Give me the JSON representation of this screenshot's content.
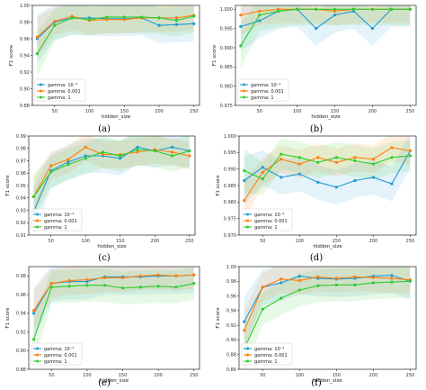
{
  "figure": {
    "colors": {
      "gamma_1e-4": "#1f9bd4",
      "gamma_0.001": "#ff7f0e",
      "gamma_1": "#2ecc2e"
    },
    "legend": [
      "gamma: 10⁻⁴",
      "gamma: 0.001",
      "gamma: 1"
    ]
  },
  "chart_data": [
    {
      "panel": "(a)",
      "type": "line",
      "xlabel": "hidden_size",
      "ylabel": "F1 score",
      "xlim": [
        18,
        258
      ],
      "ylim": [
        0.88,
        1.0
      ],
      "xticks": [
        50,
        100,
        150,
        200,
        250
      ],
      "yticks": [
        0.88,
        0.9,
        0.92,
        0.94,
        0.96,
        0.98,
        1.0
      ],
      "ytick_labels": [
        "0.88",
        "0.90",
        "0.92",
        "0.94",
        "0.96",
        "0.98",
        "1.00"
      ],
      "legend_position": "lower-right",
      "x": [
        25,
        50,
        75,
        100,
        125,
        150,
        175,
        200,
        225,
        250
      ],
      "series": [
        {
          "name": "gamma: 10⁻⁴",
          "values": [
            0.96,
            0.98,
            0.985,
            0.985,
            0.984,
            0.984,
            0.985,
            0.976,
            0.977,
            0.978
          ]
        },
        {
          "name": "gamma: 0.001",
          "values": [
            0.962,
            0.981,
            0.987,
            0.982,
            0.983,
            0.983,
            0.985,
            0.985,
            0.985,
            0.988
          ]
        },
        {
          "name": "gamma: 1",
          "values": [
            0.942,
            0.976,
            0.985,
            0.983,
            0.986,
            0.986,
            0.986,
            0.985,
            0.982,
            0.987
          ]
        }
      ]
    },
    {
      "panel": "(b)",
      "type": "line",
      "xlabel": "hidden_size",
      "ylabel": "F1 score",
      "xlim": [
        18,
        258
      ],
      "ylim": [
        0.975,
        1.001
      ],
      "xticks": [
        50,
        100,
        150,
        200,
        250
      ],
      "yticks": [
        0.975,
        0.98,
        0.985,
        0.99,
        0.995,
        1.0
      ],
      "ytick_labels": [
        "0.975",
        "0.980",
        "0.985",
        "0.990",
        "0.995",
        "1.000"
      ],
      "legend_position": "lower-right",
      "x": [
        25,
        50,
        75,
        100,
        125,
        150,
        175,
        200,
        225,
        250
      ],
      "series": [
        {
          "name": "gamma: 10⁻⁴",
          "values": [
            0.9955,
            0.997,
            0.9995,
            1.0,
            0.995,
            0.9985,
            0.9995,
            0.995,
            1.0,
            1.0
          ]
        },
        {
          "name": "gamma: 0.001",
          "values": [
            0.9985,
            0.9995,
            1.0,
            1.0,
            1.0,
            0.9995,
            1.0,
            1.0,
            1.0,
            1.0
          ]
        },
        {
          "name": "gamma: 1",
          "values": [
            0.9905,
            0.9985,
            0.9995,
            1.0,
            1.0,
            1.0,
            1.0,
            1.0,
            1.0,
            1.0
          ]
        }
      ]
    },
    {
      "panel": "(c)",
      "type": "line",
      "xlabel": "hidden_size",
      "ylabel": "F1 score",
      "xlim": [
        18,
        258
      ],
      "ylim": [
        0.91,
        0.99
      ],
      "xticks": [
        50,
        100,
        150,
        200,
        250
      ],
      "yticks": [
        0.91,
        0.92,
        0.93,
        0.94,
        0.95,
        0.96,
        0.97,
        0.98,
        0.99
      ],
      "ytick_labels": [
        "0.91",
        "0.92",
        "0.93",
        "0.94",
        "0.95",
        "0.96",
        "0.97",
        "0.98",
        "0.99"
      ],
      "legend_position": "lower-right",
      "x": [
        25,
        50,
        75,
        100,
        125,
        150,
        175,
        200,
        225,
        250
      ],
      "series": [
        {
          "name": "gamma: 10⁻⁴",
          "values": [
            0.929,
            0.962,
            0.969,
            0.974,
            0.974,
            0.972,
            0.981,
            0.978,
            0.981,
            0.978
          ]
        },
        {
          "name": "gamma: 0.001",
          "values": [
            0.941,
            0.966,
            0.971,
            0.981,
            0.975,
            0.975,
            0.977,
            0.979,
            0.977,
            0.974
          ]
        },
        {
          "name": "gamma: 1",
          "values": [
            0.941,
            0.961,
            0.967,
            0.972,
            0.977,
            0.974,
            0.979,
            0.978,
            0.974,
            0.978
          ]
        }
      ]
    },
    {
      "panel": "(d)",
      "type": "line",
      "xlabel": "hidden_size",
      "ylabel": "F1 score",
      "xlim": [
        18,
        258
      ],
      "ylim": [
        0.97,
        1.0
      ],
      "xticks": [
        50,
        100,
        150,
        200,
        250
      ],
      "yticks": [
        0.97,
        0.975,
        0.98,
        0.985,
        0.99,
        0.995,
        1.0
      ],
      "ytick_labels": [
        "0.970",
        "0.975",
        "0.980",
        "0.985",
        "0.990",
        "0.995",
        "1.000"
      ],
      "legend_position": "lower-right",
      "x": [
        25,
        50,
        75,
        100,
        125,
        150,
        175,
        200,
        225,
        250
      ],
      "series": [
        {
          "name": "gamma: 10⁻⁴",
          "values": [
            0.9865,
            0.9905,
            0.9875,
            0.9885,
            0.986,
            0.9845,
            0.9865,
            0.9875,
            0.9855,
            0.9955
          ]
        },
        {
          "name": "gamma: 0.001",
          "values": [
            0.9805,
            0.989,
            0.993,
            0.9915,
            0.9935,
            0.992,
            0.9935,
            0.993,
            0.9965,
            0.9955
          ]
        },
        {
          "name": "gamma: 1",
          "values": [
            0.9895,
            0.987,
            0.9945,
            0.9935,
            0.992,
            0.9935,
            0.9925,
            0.9915,
            0.9935,
            0.994
          ]
        }
      ]
    },
    {
      "panel": "(e)",
      "type": "line",
      "xlabel": "hidden_size",
      "ylabel": "F1 score",
      "xlim": [
        18,
        258
      ],
      "ylim": [
        0.88,
        0.99
      ],
      "xticks": [
        50,
        100,
        150,
        200,
        250
      ],
      "yticks": [
        0.88,
        0.9,
        0.92,
        0.94,
        0.96,
        0.98
      ],
      "ytick_labels": [
        "0.88",
        "0.90",
        "0.92",
        "0.94",
        "0.96",
        "0.98"
      ],
      "legend_position": "lower-right",
      "x": [
        25,
        50,
        75,
        100,
        125,
        150,
        175,
        200,
        225,
        250
      ],
      "series": [
        {
          "name": "gamma: 10⁻⁴",
          "values": [
            0.94,
            0.972,
            0.974,
            0.974,
            0.979,
            0.979,
            0.979,
            0.98,
            0.98,
            0.981
          ]
        },
        {
          "name": "gamma: 0.001",
          "values": [
            0.943,
            0.972,
            0.975,
            0.976,
            0.978,
            0.978,
            0.98,
            0.981,
            0.98,
            0.981
          ]
        },
        {
          "name": "gamma: 1",
          "values": [
            0.912,
            0.968,
            0.969,
            0.97,
            0.97,
            0.967,
            0.968,
            0.969,
            0.968,
            0.972
          ]
        }
      ]
    },
    {
      "panel": "(f)",
      "type": "line",
      "xlabel": "hidden_size",
      "ylabel": "F1 score",
      "xlim": [
        18,
        258
      ],
      "ylim": [
        0.86,
        1.0
      ],
      "xticks": [
        50,
        100,
        150,
        200,
        250
      ],
      "yticks": [
        0.86,
        0.88,
        0.9,
        0.92,
        0.94,
        0.96,
        0.98,
        1.0
      ],
      "ytick_labels": [
        "0.86",
        "0.88",
        "0.90",
        "0.92",
        "0.94",
        "0.96",
        "0.98",
        "1.00"
      ],
      "legend_position": "lower-right",
      "x": [
        25,
        50,
        75,
        100,
        125,
        150,
        175,
        200,
        225,
        250
      ],
      "series": [
        {
          "name": "gamma: 10⁻⁴",
          "values": [
            0.925,
            0.972,
            0.978,
            0.987,
            0.984,
            0.983,
            0.984,
            0.987,
            0.988,
            0.98
          ]
        },
        {
          "name": "gamma: 0.001",
          "values": [
            0.913,
            0.972,
            0.983,
            0.981,
            0.986,
            0.984,
            0.986,
            0.985,
            0.984,
            0.982
          ]
        },
        {
          "name": "gamma: 1",
          "values": [
            0.888,
            0.942,
            0.957,
            0.968,
            0.974,
            0.975,
            0.975,
            0.978,
            0.979,
            0.98
          ]
        }
      ]
    }
  ]
}
